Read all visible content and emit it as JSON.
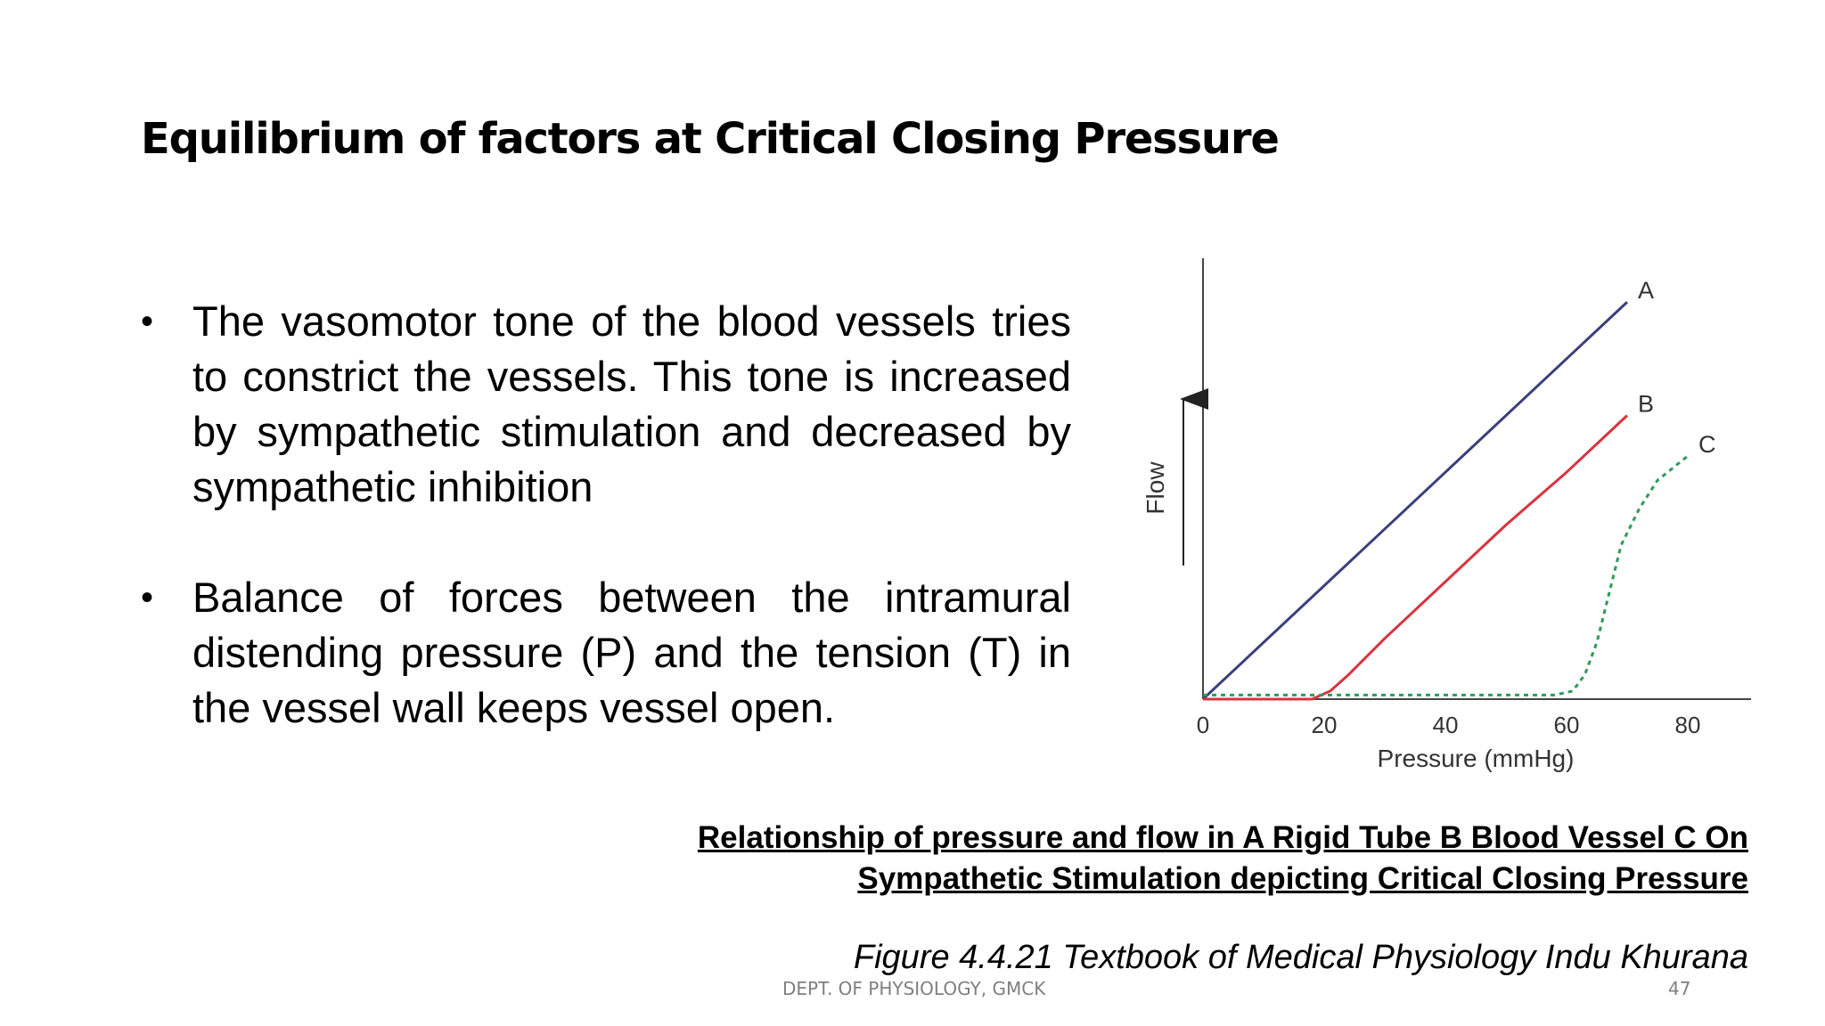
{
  "slide": {
    "title": "Equilibrium of factors at Critical Closing Pressure",
    "bullets": [
      "The vasomotor tone of the blood vessels tries to constrict the vessels. This tone is increased by sympathetic stimulation and decreased by sympathetic inhibition",
      "Balance of forces between the intramural distending pressure (P) and the tension (T) in the vessel wall keeps vessel open."
    ],
    "bullet_symbol": "•",
    "caption": "Relationship of pressure and flow in A Rigid Tube B Blood Vessel C On Sympathetic Stimulation depicting Critical Closing Pressure",
    "source": "Figure 4.4.21 Textbook of Medical Physiology Indu Khurana",
    "footer": "DEPT. OF PHYSIOLOGY, GMCK",
    "page_number": "47"
  },
  "chart_data": {
    "type": "line",
    "xlabel": "Pressure (mmHg)",
    "ylabel": "Flow",
    "xlim": [
      0,
      90
    ],
    "ylim": [
      0,
      100
    ],
    "x_ticks": [
      "0",
      "20",
      "40",
      "60",
      "80"
    ],
    "grid": false,
    "series": [
      {
        "name": "A",
        "color": "#3a3f7a",
        "style": "solid",
        "points": [
          [
            0,
            0
          ],
          [
            70,
            98
          ]
        ]
      },
      {
        "name": "B",
        "color": "#d9333f",
        "style": "solid",
        "points": [
          [
            0,
            0
          ],
          [
            18,
            0
          ],
          [
            21,
            2
          ],
          [
            24,
            6
          ],
          [
            30,
            15
          ],
          [
            40,
            29
          ],
          [
            50,
            43
          ],
          [
            60,
            56
          ],
          [
            70,
            70
          ]
        ]
      },
      {
        "name": "C",
        "color": "#2e9a5a",
        "style": "dashed",
        "points": [
          [
            0,
            1
          ],
          [
            58,
            1
          ],
          [
            61,
            2
          ],
          [
            63,
            6
          ],
          [
            65,
            14
          ],
          [
            67,
            26
          ],
          [
            69,
            38
          ],
          [
            72,
            47
          ],
          [
            75,
            54
          ],
          [
            80,
            60
          ]
        ]
      }
    ]
  }
}
